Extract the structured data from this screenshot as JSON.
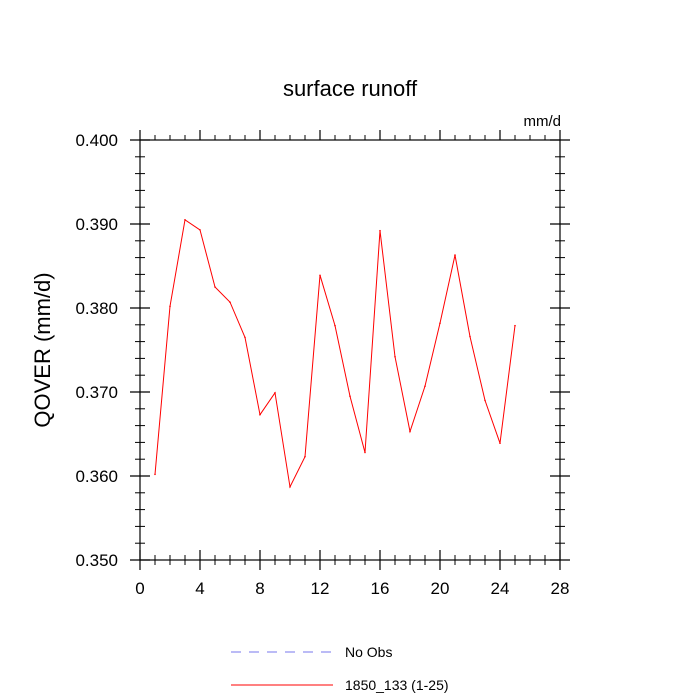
{
  "chart_data": {
    "type": "line",
    "title": "surface runoff",
    "units_label": "mm/d",
    "ylabel": "QOVER  (mm/d)",
    "xlabel": "",
    "xlim": [
      0,
      28
    ],
    "ylim": [
      0.35,
      0.4
    ],
    "x_ticks": [
      0,
      4,
      8,
      12,
      16,
      20,
      24,
      28
    ],
    "x_tick_labels": [
      "0",
      "4",
      "8",
      "12",
      "16",
      "20",
      "24",
      "28"
    ],
    "y_ticks": [
      0.35,
      0.36,
      0.37,
      0.38,
      0.39,
      0.4
    ],
    "y_tick_labels": [
      "0.350",
      "0.360",
      "0.370",
      "0.380",
      "0.390",
      "0.400"
    ],
    "series": [
      {
        "name": "1850_133 (1-25)",
        "color": "#ff0000",
        "style": "solid",
        "x": [
          1,
          2,
          3,
          4,
          5,
          6,
          7,
          8,
          9,
          10,
          11,
          12,
          13,
          14,
          15,
          16,
          17,
          18,
          19,
          20,
          21,
          22,
          23,
          24,
          25
        ],
        "values": [
          0.3602,
          0.3802,
          0.3905,
          0.3893,
          0.3825,
          0.3807,
          0.3765,
          0.3673,
          0.3699,
          0.3587,
          0.3623,
          0.3839,
          0.3779,
          0.3695,
          0.3628,
          0.3892,
          0.3742,
          0.3653,
          0.3707,
          0.3782,
          0.3863,
          0.3766,
          0.369,
          0.3639,
          0.3779
        ]
      }
    ],
    "legend": {
      "placement": "bottom",
      "entries": [
        {
          "label": "No Obs",
          "color": "#7777ee",
          "style": "dashed"
        },
        {
          "label": "1850_133 (1-25)",
          "color": "#ff0000",
          "style": "solid"
        }
      ]
    }
  }
}
